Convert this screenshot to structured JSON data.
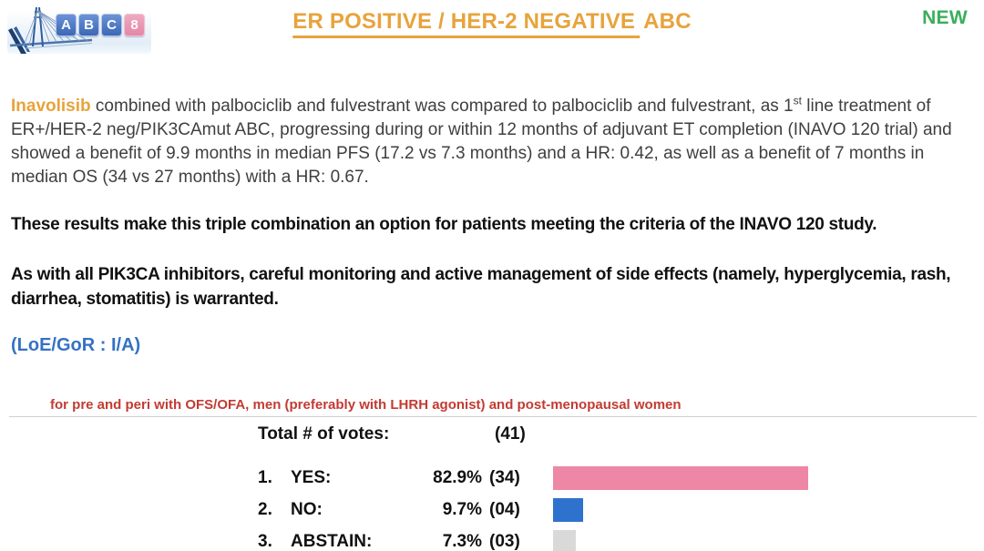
{
  "colors": {
    "accent_gold": "#E8A33C",
    "badge_green": "#3AAE5B",
    "body_text": "#3F3F3F",
    "emphasis_text": "#111111",
    "loe_blue": "#3572C4",
    "note_red": "#C23B32",
    "bar_yes_pink": "#EE87A5",
    "bar_no_blue": "#2F72CE",
    "bar_abstain_gray": "#D9D9D9"
  },
  "logo": {
    "letters": [
      "A",
      "B",
      "C"
    ],
    "number": "8"
  },
  "header": {
    "title_underlined": "ER POSITIVE / HER-2 NEGATIVE",
    "title_plain": "ABC",
    "badge": "NEW"
  },
  "recommendation": {
    "drug": "Inavolisib",
    "text_before_sup": " combined with palbociclib and fulvestrant was compared to palbociclib and fulvestrant, as 1",
    "sup": "st",
    "text_after_sup": " line treatment of ER+/HER-2 neg/PIK3CAmut ABC, progressing during or within 12 months of adjuvant ET completion (INAVO 120 trial) and showed a benefit of 9.9 months in median PFS (17.2 vs 7.3 months) and a HR: 0.42, as well as a benefit of 7 months in median OS (34 vs 27 months) with a HR: 0.67.",
    "statement_1": "These results make this triple combination an option for patients meeting the criteria of the INAVO 120 study.",
    "statement_2": "As with all PIK3CA inhibitors, careful monitoring and active management of side effects (namely, hyperglycemia, rash, diarrhea, stomatitis) is warranted.",
    "loe_gor": "(LoE/GoR : I/A)"
  },
  "voting": {
    "note": "for pre and peri with OFS/OFA, men (preferably with LHRH agonist) and post-menopausal women",
    "total_label": "Total # of votes:",
    "total_count": "(41)",
    "rows": [
      {
        "rank": "1.",
        "label": "YES:",
        "percent": "82.9%",
        "percent_value": 82.9,
        "count": "(34)",
        "color": "#EE87A5"
      },
      {
        "rank": "2.",
        "label": "NO:",
        "percent": "9.7%",
        "percent_value": 9.7,
        "count": "(04)",
        "color": "#2F72CE"
      },
      {
        "rank": "3.",
        "label": "ABSTAIN:",
        "percent": "7.3%",
        "percent_value": 7.3,
        "count": "(03)",
        "color": "#D9D9D9"
      }
    ]
  },
  "chart_data": {
    "type": "bar",
    "orientation": "horizontal",
    "title": "Total # of votes: (41)",
    "categories": [
      "YES",
      "NO",
      "ABSTAIN"
    ],
    "values": [
      82.9,
      9.7,
      7.3
    ],
    "counts": [
      34,
      4,
      3
    ],
    "unit": "%",
    "total_votes": 41,
    "colors": [
      "#EE87A5",
      "#2F72CE",
      "#D9D9D9"
    ],
    "xlim": [
      0,
      100
    ],
    "legend": "none",
    "grid": false
  }
}
